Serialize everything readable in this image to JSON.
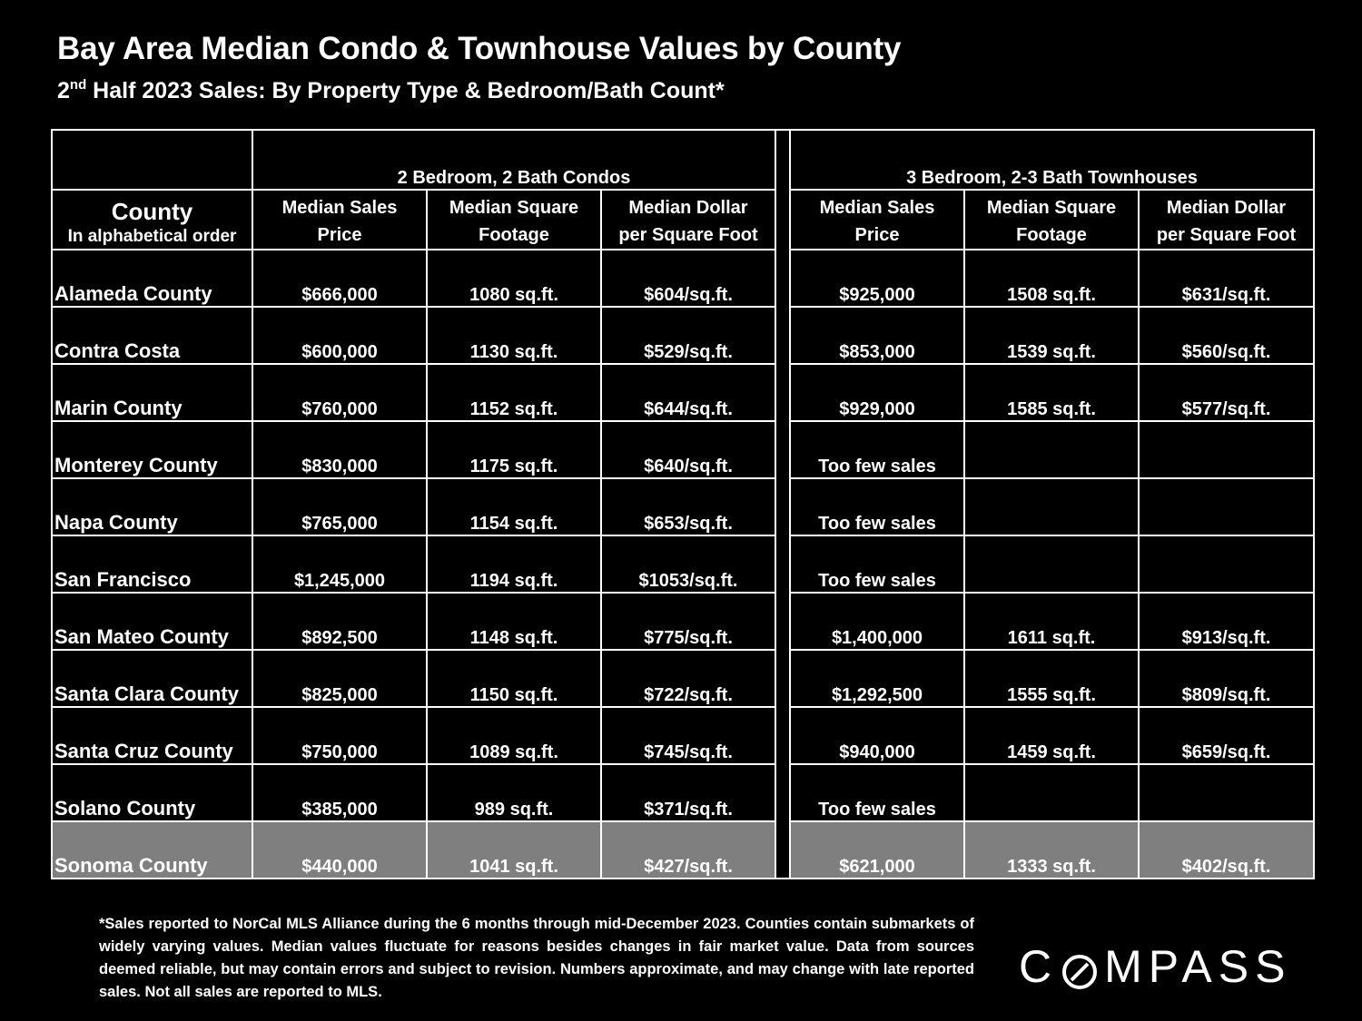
{
  "header": {
    "title": "Bay Area Median Condo & Townhouse Values by County",
    "subtitle_prefix": "2",
    "subtitle_sup": "nd",
    "subtitle_rest": " Half 2023 Sales:  By Property Type & Bedroom/Bath Count*"
  },
  "table": {
    "groups": {
      "condos": "2 Bedroom, 2 Bath Condos",
      "townhouses": "3 Bedroom, 2-3 Bath Townhouses"
    },
    "county_header": {
      "line1": "County",
      "line2": "In alphabetical order"
    },
    "columns": {
      "price": {
        "line1": "Median Sales",
        "line2": "Price"
      },
      "sqft": {
        "line1": "Median Square",
        "line2": "Footage"
      },
      "ppsf": {
        "line1": "Median Dollar",
        "line2": "per Square Foot"
      }
    },
    "rows": [
      {
        "county": "Alameda County",
        "c_price": "$666,000",
        "c_sqft": "1080 sq.ft.",
        "c_ppsf": "$604/sq.ft.",
        "t_price": "$925,000",
        "t_sqft": "1508 sq.ft.",
        "t_ppsf": "$631/sq.ft."
      },
      {
        "county": "Contra Costa",
        "c_price": "$600,000",
        "c_sqft": "1130 sq.ft.",
        "c_ppsf": "$529/sq.ft.",
        "t_price": "$853,000",
        "t_sqft": "1539 sq.ft.",
        "t_ppsf": "$560/sq.ft."
      },
      {
        "county": "Marin County",
        "c_price": "$760,000",
        "c_sqft": "1152 sq.ft.",
        "c_ppsf": "$644/sq.ft.",
        "t_price": "$929,000",
        "t_sqft": "1585 sq.ft.",
        "t_ppsf": "$577/sq.ft."
      },
      {
        "county": "Monterey County",
        "c_price": "$830,000",
        "c_sqft": "1175 sq.ft.",
        "c_ppsf": "$640/sq.ft.",
        "t_price": "Too few sales",
        "t_sqft": "",
        "t_ppsf": ""
      },
      {
        "county": "Napa County",
        "c_price": "$765,000",
        "c_sqft": "1154 sq.ft.",
        "c_ppsf": "$653/sq.ft.",
        "t_price": "Too few sales",
        "t_sqft": "",
        "t_ppsf": ""
      },
      {
        "county": "San Francisco",
        "c_price": "$1,245,000",
        "c_sqft": "1194 sq.ft.",
        "c_ppsf": "$1053/sq.ft.",
        "t_price": "Too few sales",
        "t_sqft": "",
        "t_ppsf": ""
      },
      {
        "county": "San Mateo County",
        "c_price": "$892,500",
        "c_sqft": "1148 sq.ft.",
        "c_ppsf": "$775/sq.ft.",
        "t_price": "$1,400,000",
        "t_sqft": "1611 sq.ft.",
        "t_ppsf": "$913/sq.ft."
      },
      {
        "county": "Santa Clara County",
        "c_price": "$825,000",
        "c_sqft": "1150 sq.ft.",
        "c_ppsf": "$722/sq.ft.",
        "t_price": "$1,292,500",
        "t_sqft": "1555 sq.ft.",
        "t_ppsf": "$809/sq.ft."
      },
      {
        "county": "Santa Cruz County",
        "c_price": "$750,000",
        "c_sqft": "1089 sq.ft.",
        "c_ppsf": "$745/sq.ft.",
        "t_price": "$940,000",
        "t_sqft": "1459 sq.ft.",
        "t_ppsf": "$659/sq.ft."
      },
      {
        "county": "Solano County",
        "c_price": "$385,000",
        "c_sqft": "989 sq.ft.",
        "c_ppsf": "$371/sq.ft.",
        "t_price": "Too few sales",
        "t_sqft": "",
        "t_ppsf": ""
      },
      {
        "county": "Sonoma County",
        "c_price": "$440,000",
        "c_sqft": "1041 sq.ft.",
        "c_ppsf": "$427/sq.ft.",
        "t_price": "$621,000",
        "t_sqft": "1333 sq.ft.",
        "t_ppsf": "$402/sq.ft.",
        "highlight": true
      }
    ]
  },
  "footnote": "*Sales reported to NorCal MLS Alliance during the 6 months through mid-December 2023. Counties contain submarkets of widely varying values. Median values fluctuate for reasons besides changes in fair market value. Data from sources deemed reliable, but may contain errors and subject to revision.  Numbers approximate, and may change with late reported sales. Not all sales are reported to MLS.",
  "logo": {
    "first": "C",
    "rest": "MPASS",
    "icon": "compass-o-icon"
  },
  "colors": {
    "background": "#000000",
    "text": "#ffffff",
    "grid": "#ffffff",
    "highlight_row": "#7f7f7f"
  }
}
